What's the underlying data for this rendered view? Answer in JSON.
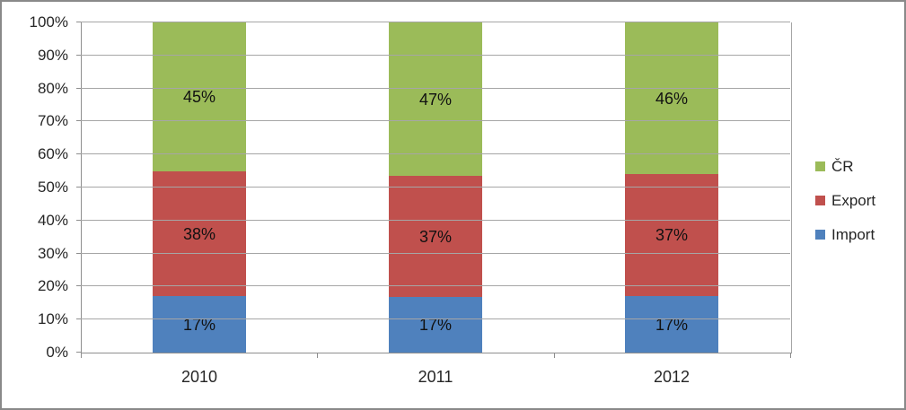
{
  "chart_data": {
    "type": "bar",
    "stacked": true,
    "percent_stacked": true,
    "title": "",
    "xlabel": "",
    "ylabel": "",
    "categories": [
      "2010",
      "2011",
      "2012"
    ],
    "series": [
      {
        "name": "Import",
        "color": "#4F81BD",
        "values": [
          17,
          17,
          17
        ],
        "labels": [
          "17%",
          "17%",
          "17%"
        ]
      },
      {
        "name": "Export",
        "color": "#C0504D",
        "values": [
          38,
          37,
          37
        ],
        "labels": [
          "38%",
          "37%",
          "37%"
        ]
      },
      {
        "name": "ČR",
        "color": "#9BBB59",
        "values": [
          45,
          47,
          46
        ],
        "labels": [
          "45%",
          "47%",
          "46%"
        ]
      }
    ],
    "y_axis": {
      "min": 0,
      "max": 100,
      "tick_step": 10,
      "tick_labels": [
        "0%",
        "10%",
        "20%",
        "30%",
        "40%",
        "50%",
        "60%",
        "70%",
        "80%",
        "90%",
        "100%"
      ],
      "grid": true
    },
    "legend": {
      "position": "right",
      "items": [
        "ČR",
        "Export",
        "Import"
      ]
    },
    "frame_color": "#898989",
    "gridline_color": "#a6a6a6"
  }
}
